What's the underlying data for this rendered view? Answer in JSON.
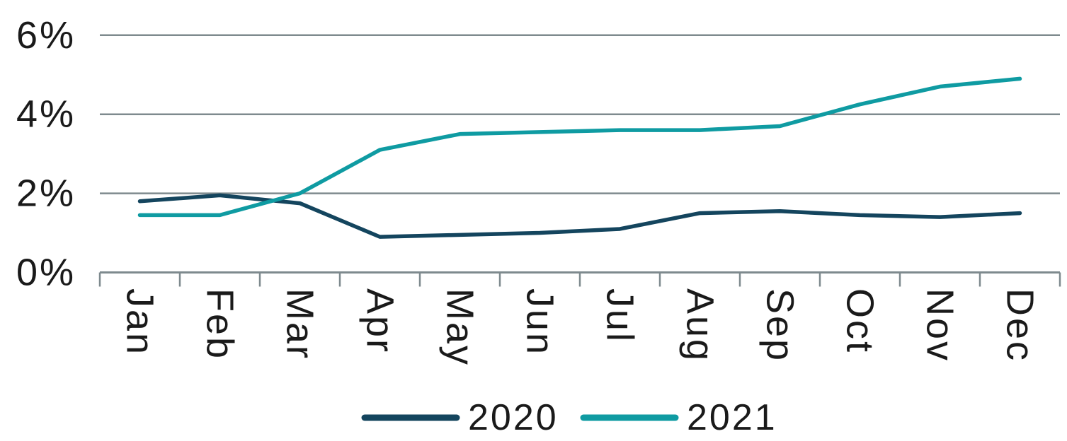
{
  "chart_data": {
    "type": "line",
    "title": "",
    "xlabel": "",
    "ylabel": "",
    "categories": [
      "Jan",
      "Feb",
      "Mar",
      "Apr",
      "May",
      "Jun",
      "Jul",
      "Aug",
      "Sep",
      "Oct",
      "Nov",
      "Dec"
    ],
    "series": [
      {
        "name": "2020",
        "color": "#14455e",
        "values": [
          1.8,
          1.95,
          1.75,
          0.9,
          0.95,
          1.0,
          1.1,
          1.5,
          1.55,
          1.45,
          1.4,
          1.5
        ]
      },
      {
        "name": "2021",
        "color": "#0f9ba2",
        "values": [
          1.45,
          1.45,
          2.0,
          3.1,
          3.5,
          3.55,
          3.6,
          3.6,
          3.7,
          4.25,
          4.7,
          4.9
        ]
      }
    ],
    "y_ticks": [
      {
        "label": "0%",
        "value": 0
      },
      {
        "label": "2%",
        "value": 2
      },
      {
        "label": "4%",
        "value": 4
      },
      {
        "label": "6%",
        "value": 6
      }
    ],
    "gridline_values": [
      2,
      4,
      6
    ],
    "ylim": [
      0,
      6
    ],
    "grid": true,
    "legend_position": "bottom",
    "x_label_rotation_deg": 90
  },
  "colors": {
    "grid": "#7e8a8e",
    "axis": "#7e8a8e",
    "text": "#1a1a1a",
    "background": "#ffffff"
  }
}
